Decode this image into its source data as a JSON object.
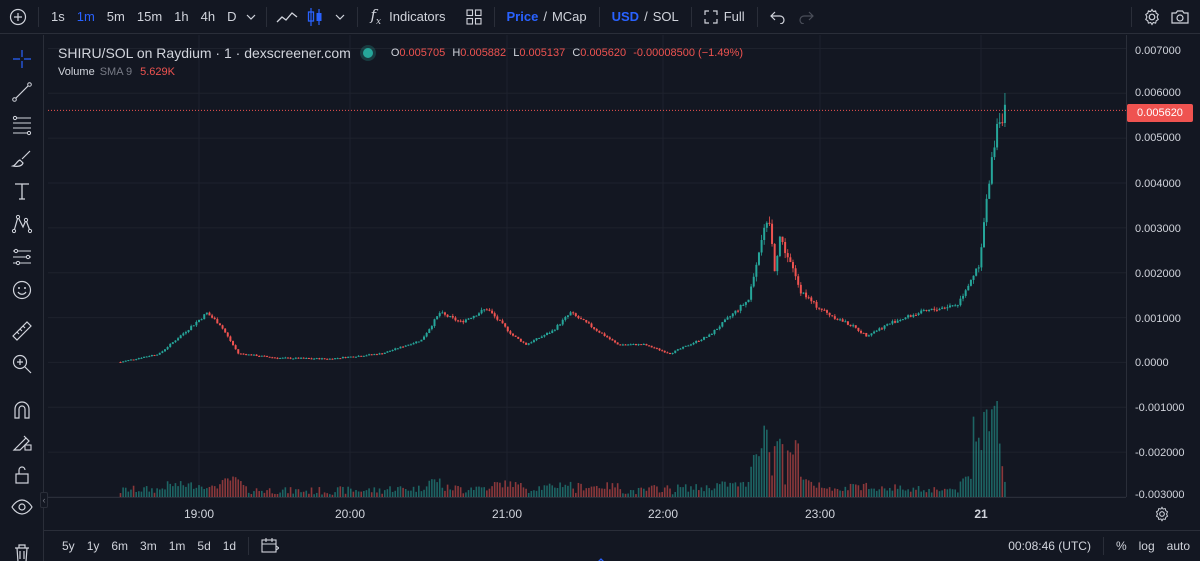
{
  "toolbar": {
    "intervals": [
      "1s",
      "1m",
      "5m",
      "15m",
      "1h",
      "4h",
      "D"
    ],
    "active_interval": "1m",
    "indicators_label": "Indicators",
    "price_label": "Price",
    "slash": "/",
    "mcap_label": "MCap",
    "usd_label": "USD",
    "sol_label": "SOL",
    "full_label": "Full"
  },
  "legend": {
    "title": "SHIRU/SOL on Raydium · 1 · dexscreener.com",
    "open_key": "O",
    "open": "0.005705",
    "high_key": "H",
    "high": "0.005882",
    "low_key": "L",
    "low": "0.005137",
    "close_key": "C",
    "close": "0.005620",
    "change": "-0.00008500 (−1.49%)",
    "volume_label": "Volume",
    "sma_label": "SMA 9",
    "volume_value": "5.629K"
  },
  "price_scale": {
    "ticks": [
      "0.007000",
      "0.006000",
      "0.005000",
      "0.004000",
      "0.003000",
      "0.002000",
      "0.001000",
      "0.0000",
      "-0.001000",
      "-0.002000",
      "-0.003000"
    ],
    "current_price": "0.005620"
  },
  "time_scale": {
    "ticks": [
      "19:00",
      "20:00",
      "21:00",
      "22:00",
      "23:00",
      "21"
    ]
  },
  "bottom": {
    "ranges": [
      "5y",
      "1y",
      "6m",
      "3m",
      "1m",
      "5d",
      "1d"
    ],
    "clock": "00:08:46 (UTC)",
    "percent_label": "%",
    "log_label": "log",
    "auto_label": "auto"
  },
  "colors": {
    "up": "#26a69a",
    "down": "#ef5350",
    "accent": "#2962ff",
    "background": "#131722"
  },
  "chart_data": {
    "type": "candlestick",
    "interval": "1m",
    "ylim": [
      -0.003,
      0.0073
    ],
    "close_series": [
      [
        "18:30",
        1e-05
      ],
      [
        "18:45",
        0.0002
      ],
      [
        "18:55",
        0.0007
      ],
      [
        "19:03",
        0.0011
      ],
      [
        "19:08",
        0.00085
      ],
      [
        "19:15",
        0.0002
      ],
      [
        "19:30",
        0.0001
      ],
      [
        "19:50",
        8e-05
      ],
      [
        "20:10",
        0.0002
      ],
      [
        "20:25",
        0.0005
      ],
      [
        "20:32",
        0.0011
      ],
      [
        "20:40",
        0.0009
      ],
      [
        "20:50",
        0.0012
      ],
      [
        "21:00",
        0.0006
      ],
      [
        "21:05",
        0.0004
      ],
      [
        "21:15",
        0.0007
      ],
      [
        "21:22",
        0.0011
      ],
      [
        "21:30",
        0.0008
      ],
      [
        "21:40",
        0.0004
      ],
      [
        "21:50",
        0.0004
      ],
      [
        "22:00",
        0.0002
      ],
      [
        "22:15",
        0.0006
      ],
      [
        "22:30",
        0.0014
      ],
      [
        "22:40",
        0.0021
      ],
      [
        "22:35",
        0.0028
      ],
      [
        "22:38",
        0.0031
      ],
      [
        "22:42",
        0.0028
      ],
      [
        "22:50",
        0.0016
      ],
      [
        "22:55",
        0.0013
      ],
      [
        "23:00",
        0.0011
      ],
      [
        "23:10",
        0.0008
      ],
      [
        "23:15",
        0.0006
      ],
      [
        "23:25",
        0.0009
      ],
      [
        "23:35",
        0.0011
      ],
      [
        "23:50",
        0.0013
      ],
      [
        "23:58",
        0.0022
      ],
      [
        "00:02",
        0.004
      ],
      [
        "00:05",
        0.0054
      ],
      [
        "00:08",
        0.00562
      ]
    ]
  }
}
